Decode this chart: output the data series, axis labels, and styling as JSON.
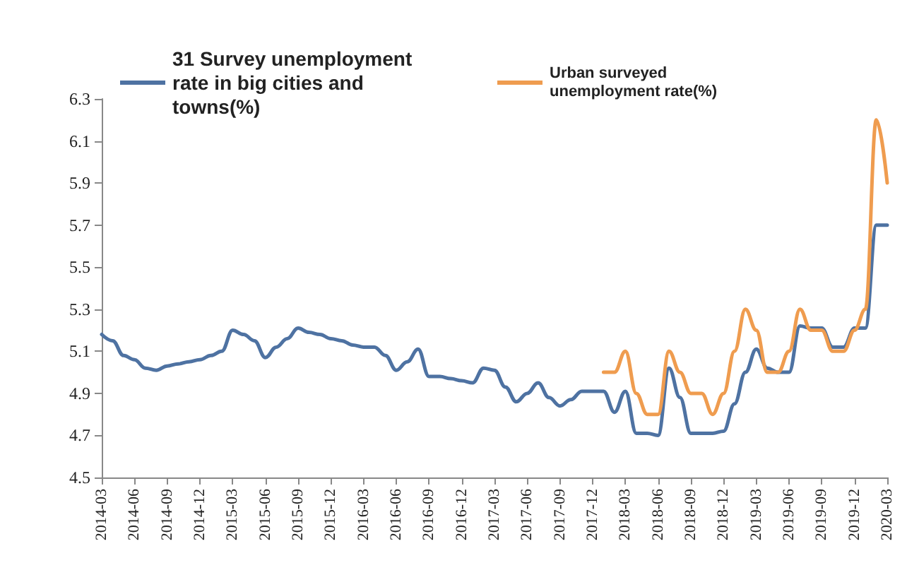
{
  "chart_data": {
    "type": "line",
    "categories": [
      "2014-03",
      null,
      null,
      "2014-06",
      null,
      null,
      "2014-09",
      null,
      null,
      "2014-12",
      null,
      null,
      "2015-03",
      null,
      null,
      "2015-06",
      null,
      null,
      "2015-09",
      null,
      null,
      "2015-12",
      null,
      null,
      "2016-03",
      null,
      null,
      "2016-06",
      null,
      null,
      "2016-09",
      null,
      null,
      "2016-12",
      null,
      null,
      "2017-03",
      null,
      null,
      "2017-06",
      null,
      null,
      "2017-09",
      null,
      null,
      "2017-12",
      null,
      null,
      "2018-03",
      null,
      null,
      "2018-06",
      null,
      null,
      "2018-09",
      null,
      null,
      "2018-12",
      null,
      null,
      "2019-03",
      null,
      null,
      "2019-06",
      null,
      null,
      "2019-09",
      null,
      null,
      "2019-12",
      null,
      null,
      "2020-03"
    ],
    "series": [
      {
        "name": "31 Survey unemployment rate in big cities and towns(%)",
        "color": "#4e72a2",
        "values": [
          5.18,
          5.15,
          5.08,
          5.06,
          5.02,
          5.01,
          5.03,
          5.04,
          5.05,
          5.06,
          5.08,
          5.1,
          5.2,
          5.18,
          5.15,
          5.07,
          5.12,
          5.16,
          5.21,
          5.19,
          5.18,
          5.16,
          5.15,
          5.13,
          5.12,
          5.12,
          5.08,
          5.01,
          5.05,
          5.11,
          4.98,
          4.98,
          4.97,
          4.96,
          4.95,
          5.02,
          5.01,
          4.93,
          4.86,
          4.9,
          4.95,
          4.88,
          4.84,
          4.87,
          4.91,
          4.91,
          4.91,
          4.81,
          4.91,
          4.71,
          4.71,
          4.7,
          5.02,
          4.88,
          4.71,
          4.71,
          4.71,
          4.72,
          4.85,
          5.0,
          5.11,
          5.02,
          5.0,
          5.0,
          5.22,
          5.21,
          5.21,
          5.12,
          5.12,
          5.21,
          5.21,
          5.7,
          5.7
        ]
      },
      {
        "name": "Urban surveyed unemployment rate(%)",
        "color": "#ef9c4f",
        "values": [
          null,
          null,
          null,
          null,
          null,
          null,
          null,
          null,
          null,
          null,
          null,
          null,
          null,
          null,
          null,
          null,
          null,
          null,
          null,
          null,
          null,
          null,
          null,
          null,
          null,
          null,
          null,
          null,
          null,
          null,
          null,
          null,
          null,
          null,
          null,
          null,
          null,
          null,
          null,
          null,
          null,
          null,
          null,
          null,
          null,
          null,
          5.0,
          5.0,
          5.1,
          4.9,
          4.8,
          4.8,
          5.1,
          5.0,
          4.9,
          4.9,
          4.8,
          4.9,
          5.1,
          5.3,
          5.2,
          5.0,
          5.0,
          5.1,
          5.3,
          5.2,
          5.2,
          5.1,
          5.1,
          5.2,
          5.3,
          6.2,
          5.9
        ]
      }
    ],
    "ylim": [
      4.5,
      6.3
    ],
    "yticks": [
      4.5,
      4.7,
      4.9,
      5.1,
      5.3,
      5.5,
      5.7,
      5.9,
      6.1,
      6.3
    ],
    "grid": false,
    "legend": "top",
    "marker": "none",
    "line_style": "solid"
  }
}
